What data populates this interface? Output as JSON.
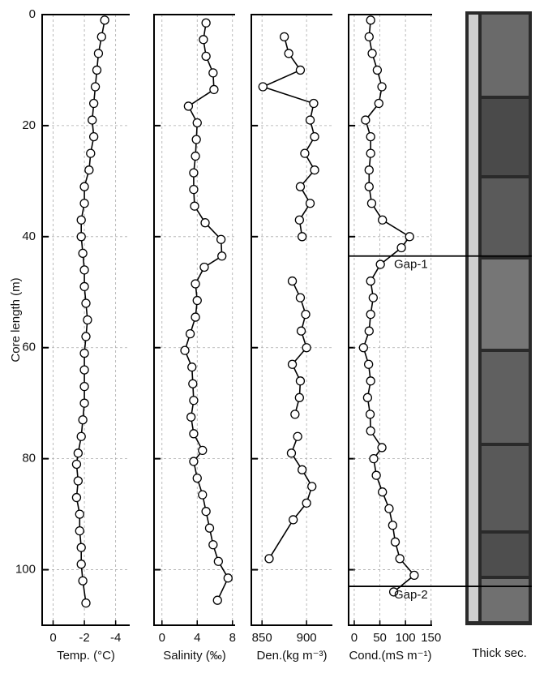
{
  "chart_data": [
    {
      "type": "line",
      "xlabel": "Temp. (°C)",
      "ylabel": "Core length (m)",
      "xlim": [
        0.7,
        -4.9
      ],
      "xticks": [
        0,
        -2,
        -4
      ],
      "ylim": [
        0,
        110
      ],
      "yticks": [
        0,
        20,
        40,
        60,
        80,
        100
      ],
      "grid": true,
      "series": [
        {
          "color": "#000000",
          "y": [
            1,
            4,
            7,
            10,
            13,
            16,
            19,
            22,
            25,
            28,
            31,
            34,
            37,
            40,
            43,
            46,
            49,
            52,
            55,
            58,
            61,
            64,
            67,
            70,
            73,
            76,
            79,
            81,
            84,
            87,
            90,
            93,
            96,
            99,
            102,
            106
          ],
          "values": [
            -3.3,
            -3.1,
            -2.9,
            -2.8,
            -2.7,
            -2.6,
            -2.5,
            -2.6,
            -2.4,
            -2.3,
            -2.0,
            -2.0,
            -1.8,
            -1.8,
            -1.9,
            -2.0,
            -2.0,
            -2.1,
            -2.2,
            -2.1,
            -2.0,
            -2.0,
            -2.0,
            -2.0,
            -1.9,
            -1.8,
            -1.6,
            -1.5,
            -1.6,
            -1.5,
            -1.7,
            -1.7,
            -1.8,
            -1.8,
            -1.9,
            -2.1
          ]
        }
      ]
    },
    {
      "type": "line",
      "xlabel": "Salinity (‰)",
      "xlim": [
        -0.9,
        8.3
      ],
      "xticks": [
        0,
        4,
        8
      ],
      "ylim": [
        0,
        110
      ],
      "yticks": [
        0,
        20,
        40,
        60,
        80,
        100
      ],
      "grid": true,
      "series": [
        {
          "color": "#000000",
          "y": [
            1.5,
            4.5,
            7.5,
            10.5,
            13.5,
            16.5,
            19.5,
            22.5,
            25.5,
            28.5,
            31.5,
            34.5,
            37.5,
            40.5,
            43.5,
            45.5,
            48.5,
            51.5,
            54.5,
            57.5,
            60.5,
            63.5,
            66.5,
            69.5,
            72.5,
            75.5,
            78.5,
            80.5,
            83.5,
            86.5,
            89.5,
            92.5,
            95.5,
            98.5,
            101.5,
            105.5
          ],
          "values": [
            5.0,
            4.7,
            5.0,
            5.8,
            5.9,
            3.0,
            4.0,
            3.9,
            3.8,
            3.6,
            3.6,
            3.7,
            4.9,
            6.7,
            6.8,
            4.8,
            3.8,
            4.0,
            3.8,
            3.2,
            2.6,
            3.4,
            3.5,
            3.6,
            3.3,
            3.6,
            4.6,
            3.6,
            4.0,
            4.6,
            5.0,
            5.4,
            5.8,
            6.4,
            7.5,
            6.3
          ]
        }
      ]
    },
    {
      "type": "line",
      "xlabel": "Den.(kg m⁻³)",
      "xlim": [
        838,
        929
      ],
      "xticks": [
        850,
        900
      ],
      "ylim": [
        0,
        110
      ],
      "yticks": [
        0,
        20,
        40,
        60,
        80,
        100
      ],
      "grid": true,
      "series": [
        {
          "color": "#000000",
          "y": [
            4,
            7,
            10,
            13,
            16,
            19,
            22,
            25,
            28,
            31,
            34,
            37,
            40,
            null,
            48,
            51,
            54,
            57,
            60,
            63,
            66,
            69,
            72,
            null,
            76,
            79,
            82,
            85,
            88,
            91,
            98
          ],
          "values": [
            875,
            880,
            893,
            851,
            908,
            904,
            909,
            898,
            909,
            893,
            904,
            892,
            895,
            null,
            884,
            893,
            899,
            894,
            900,
            884,
            893,
            892,
            887,
            null,
            890,
            883,
            895,
            906,
            900,
            885,
            858
          ]
        }
      ]
    },
    {
      "type": "line",
      "xlabel": "Cond.(mS m⁻¹)",
      "xlim": [
        -11,
        152
      ],
      "xticks": [
        0,
        50,
        100,
        150
      ],
      "ylim": [
        0,
        110
      ],
      "yticks": [
        0,
        20,
        40,
        60,
        80,
        100
      ],
      "grid": true,
      "series": [
        {
          "color": "#000000",
          "y": [
            1,
            4,
            7,
            10,
            13,
            16,
            19,
            22,
            25,
            28,
            31,
            34,
            37,
            40,
            42,
            45,
            48,
            51,
            54,
            57,
            60,
            63,
            66,
            69,
            72,
            75,
            78,
            80,
            83,
            86,
            89,
            92,
            95,
            98,
            101,
            104
          ],
          "values": [
            32,
            29,
            35,
            45,
            54,
            48,
            22,
            32,
            32,
            29,
            29,
            34,
            55,
            108,
            92,
            51,
            32,
            37,
            32,
            29,
            18,
            28,
            32,
            26,
            31,
            32,
            54,
            38,
            43,
            55,
            68,
            75,
            80,
            89,
            117,
            77
          ]
        }
      ],
      "annotations": [
        {
          "text": "Gap-1",
          "y": 43.5
        },
        {
          "text": "Gap-2",
          "y": 103
        }
      ]
    }
  ],
  "thick_section": {
    "label": "Thick sec."
  }
}
